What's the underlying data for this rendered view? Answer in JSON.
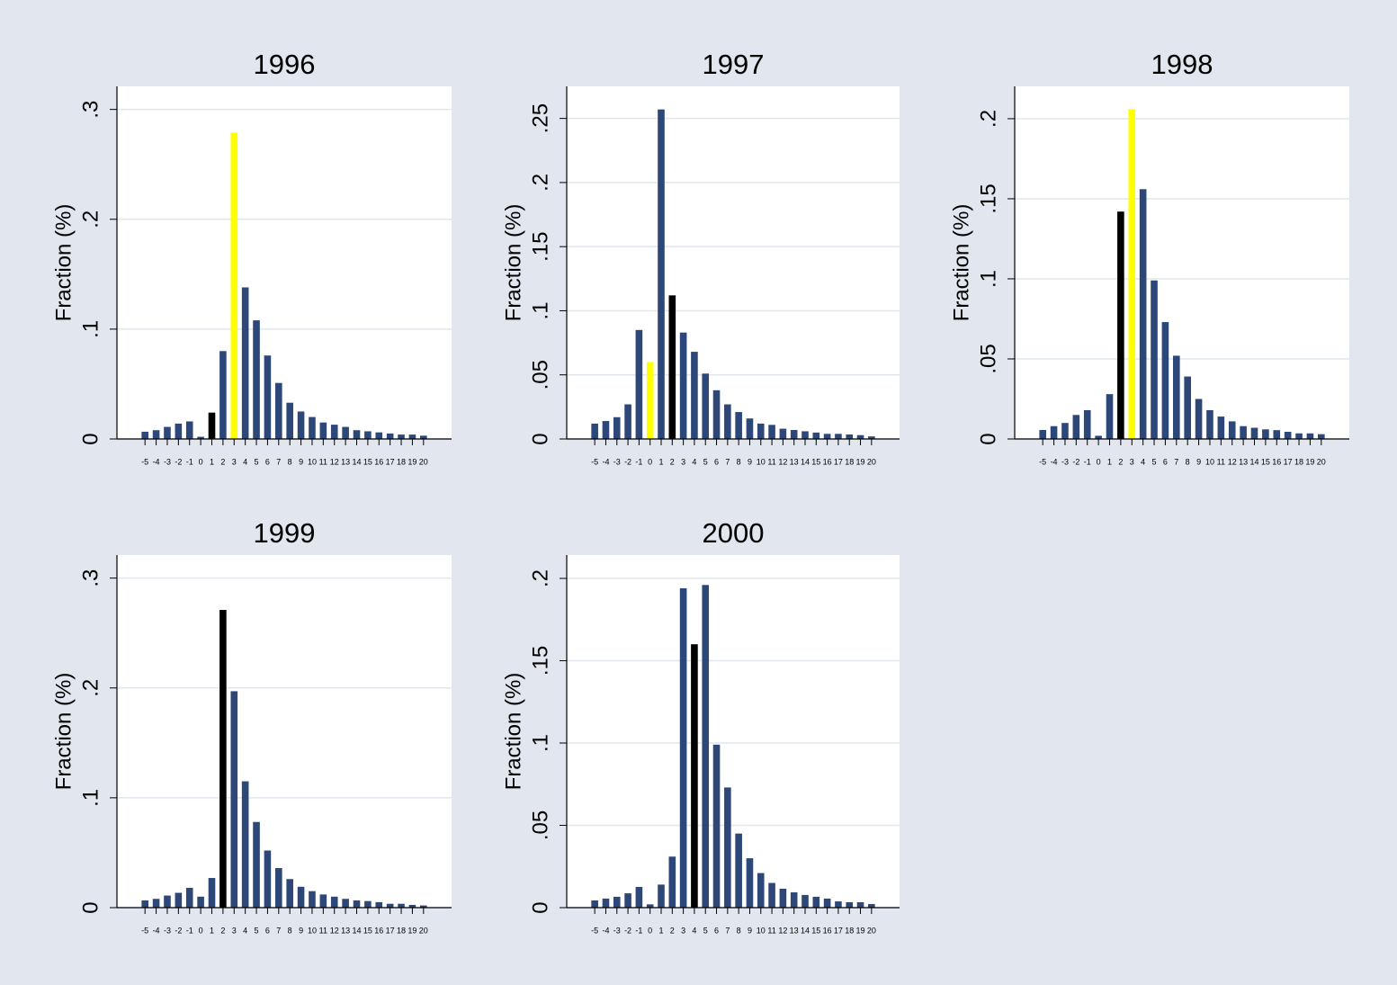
{
  "chart_data": [
    {
      "type": "bar",
      "title": "1996",
      "y_label": "Fraction (%)",
      "categories": [
        "-5",
        "-4",
        "-3",
        "-2",
        "-1",
        "0",
        "1",
        "2",
        "3",
        "4",
        "5",
        "6",
        "7",
        "8",
        "9",
        "10",
        "11",
        "12",
        "13",
        "14",
        "15",
        "16",
        "17",
        "18",
        "19",
        "20"
      ],
      "values": [
        0.0066,
        0.008,
        0.011,
        0.014,
        0.016,
        0.002,
        0.024,
        0.08,
        0.279,
        0.138,
        0.108,
        0.076,
        0.051,
        0.033,
        0.025,
        0.02,
        0.015,
        0.013,
        0.011,
        0.008,
        0.007,
        0.006,
        0.005,
        0.004,
        0.004,
        0.003
      ],
      "colors": [
        "#2d4878",
        "#2d4878",
        "#2d4878",
        "#2d4878",
        "#2d4878",
        "#2d4878",
        "#000000",
        "#2d4878",
        "#ffff00",
        "#2d4878",
        "#2d4878",
        "#2d4878",
        "#2d4878",
        "#2d4878",
        "#2d4878",
        "#2d4878",
        "#2d4878",
        "#2d4878",
        "#2d4878",
        "#2d4878",
        "#2d4878",
        "#2d4878",
        "#2d4878",
        "#2d4878",
        "#2d4878",
        "#2d4878"
      ],
      "ylim": [
        0,
        0.321
      ],
      "yticks": [
        0,
        {
          "value": 0.1,
          "label": ".1"
        },
        {
          "value": 0.2,
          "label": ".2"
        },
        {
          "value": 0.3,
          "label": ".3"
        }
      ],
      "grid": true
    },
    {
      "type": "bar",
      "title": "1997",
      "y_label": "Fraction (%)",
      "categories": [
        "-5",
        "-4",
        "-3",
        "-2",
        "-1",
        "0",
        "1",
        "2",
        "3",
        "4",
        "5",
        "6",
        "7",
        "8",
        "9",
        "10",
        "11",
        "12",
        "13",
        "14",
        "15",
        "16",
        "17",
        "18",
        "19",
        "20"
      ],
      "values": [
        0.012,
        0.014,
        0.017,
        0.027,
        0.085,
        0.06,
        0.257,
        0.112,
        0.083,
        0.068,
        0.051,
        0.038,
        0.027,
        0.021,
        0.016,
        0.012,
        0.011,
        0.008,
        0.007,
        0.006,
        0.005,
        0.004,
        0.004,
        0.0035,
        0.003,
        0.002
      ],
      "colors": [
        "#2d4878",
        "#2d4878",
        "#2d4878",
        "#2d4878",
        "#2d4878",
        "#ffff00",
        "#2d4878",
        "#000000",
        "#2d4878",
        "#2d4878",
        "#2d4878",
        "#2d4878",
        "#2d4878",
        "#2d4878",
        "#2d4878",
        "#2d4878",
        "#2d4878",
        "#2d4878",
        "#2d4878",
        "#2d4878",
        "#2d4878",
        "#2d4878",
        "#2d4878",
        "#2d4878",
        "#2d4878",
        "#2d4878"
      ],
      "ylim": [
        0,
        0.275
      ],
      "yticks": [
        0,
        {
          "value": 0.05,
          "label": ".05"
        },
        {
          "value": 0.1,
          "label": ".1"
        },
        {
          "value": 0.15,
          "label": ".15"
        },
        {
          "value": 0.2,
          "label": ".2"
        },
        {
          "value": 0.25,
          "label": ".25"
        }
      ],
      "grid": true
    },
    {
      "type": "bar",
      "title": "1998",
      "y_label": "Fraction (%)",
      "categories": [
        "-5",
        "-4",
        "-3",
        "-2",
        "-1",
        "0",
        "1",
        "2",
        "3",
        "4",
        "5",
        "6",
        "7",
        "8",
        "9",
        "10",
        "11",
        "12",
        "13",
        "14",
        "15",
        "16",
        "17",
        "18",
        "19",
        "20"
      ],
      "values": [
        0.0056,
        0.008,
        0.01,
        0.015,
        0.018,
        0.002,
        0.028,
        0.142,
        0.206,
        0.156,
        0.099,
        0.073,
        0.052,
        0.039,
        0.025,
        0.018,
        0.014,
        0.011,
        0.008,
        0.007,
        0.006,
        0.0055,
        0.0045,
        0.0035,
        0.0035,
        0.003
      ],
      "colors": [
        "#2d4878",
        "#2d4878",
        "#2d4878",
        "#2d4878",
        "#2d4878",
        "#2d4878",
        "#2d4878",
        "#000000",
        "#ffff00",
        "#2d4878",
        "#2d4878",
        "#2d4878",
        "#2d4878",
        "#2d4878",
        "#2d4878",
        "#2d4878",
        "#2d4878",
        "#2d4878",
        "#2d4878",
        "#2d4878",
        "#2d4878",
        "#2d4878",
        "#2d4878",
        "#2d4878",
        "#2d4878",
        "#2d4878"
      ],
      "ylim": [
        0,
        0.2202
      ],
      "yticks": [
        0,
        {
          "value": 0.05,
          "label": ".05"
        },
        {
          "value": 0.1,
          "label": ".1"
        },
        {
          "value": 0.15,
          "label": ".15"
        },
        {
          "value": 0.2,
          "label": ".2"
        }
      ],
      "grid": true
    },
    {
      "type": "bar",
      "title": "1999",
      "y_label": "Fraction (%)",
      "categories": [
        "-5",
        "-4",
        "-3",
        "-2",
        "-1",
        "0",
        "1",
        "2",
        "3",
        "4",
        "5",
        "6",
        "7",
        "8",
        "9",
        "10",
        "11",
        "12",
        "13",
        "14",
        "15",
        "16",
        "17",
        "18",
        "19",
        "20"
      ],
      "values": [
        0.0066,
        0.008,
        0.011,
        0.0135,
        0.018,
        0.01,
        0.027,
        0.271,
        0.197,
        0.115,
        0.078,
        0.052,
        0.036,
        0.026,
        0.019,
        0.015,
        0.012,
        0.01,
        0.008,
        0.0066,
        0.006,
        0.005,
        0.0035,
        0.0035,
        0.0025,
        0.002
      ],
      "colors": [
        "#2d4878",
        "#2d4878",
        "#2d4878",
        "#2d4878",
        "#2d4878",
        "#2d4878",
        "#2d4878",
        "#000000",
        "#2d4878",
        "#2d4878",
        "#2d4878",
        "#2d4878",
        "#2d4878",
        "#2d4878",
        "#2d4878",
        "#2d4878",
        "#2d4878",
        "#2d4878",
        "#2d4878",
        "#2d4878",
        "#2d4878",
        "#2d4878",
        "#2d4878",
        "#2d4878",
        "#2d4878",
        "#2d4878"
      ],
      "ylim": [
        0,
        0.321
      ],
      "yticks": [
        0,
        {
          "value": 0.1,
          "label": ".1"
        },
        {
          "value": 0.2,
          "label": ".2"
        },
        {
          "value": 0.3,
          "label": ".3"
        }
      ],
      "grid": true
    },
    {
      "type": "bar",
      "title": "2000",
      "y_label": "Fraction (%)",
      "categories": [
        "-5",
        "-4",
        "-3",
        "-2",
        "-1",
        "0",
        "1",
        "2",
        "3",
        "4",
        "5",
        "6",
        "7",
        "8",
        "9",
        "10",
        "11",
        "12",
        "13",
        "14",
        "15",
        "16",
        "17",
        "18",
        "19",
        "20"
      ],
      "values": [
        0.0044,
        0.0055,
        0.0066,
        0.0087,
        0.0126,
        0.002,
        0.014,
        0.031,
        0.194,
        0.16,
        0.196,
        0.099,
        0.073,
        0.045,
        0.03,
        0.021,
        0.015,
        0.0115,
        0.0093,
        0.0077,
        0.0066,
        0.0055,
        0.0038,
        0.0033,
        0.0033,
        0.0022
      ],
      "colors": [
        "#2d4878",
        "#2d4878",
        "#2d4878",
        "#2d4878",
        "#2d4878",
        "#2d4878",
        "#2d4878",
        "#2d4878",
        "#2d4878",
        "#000000",
        "#2d4878",
        "#2d4878",
        "#2d4878",
        "#2d4878",
        "#2d4878",
        "#2d4878",
        "#2d4878",
        "#2d4878",
        "#2d4878",
        "#2d4878",
        "#2d4878",
        "#2d4878",
        "#2d4878",
        "#2d4878",
        "#2d4878",
        "#2d4878"
      ],
      "ylim": [
        0,
        0.2142
      ],
      "yticks": [
        0,
        {
          "value": 0.05,
          "label": ".05"
        },
        {
          "value": 0.1,
          "label": ".1"
        },
        {
          "value": 0.15,
          "label": ".15"
        },
        {
          "value": 0.2,
          "label": ".2"
        }
      ],
      "grid": true
    }
  ]
}
